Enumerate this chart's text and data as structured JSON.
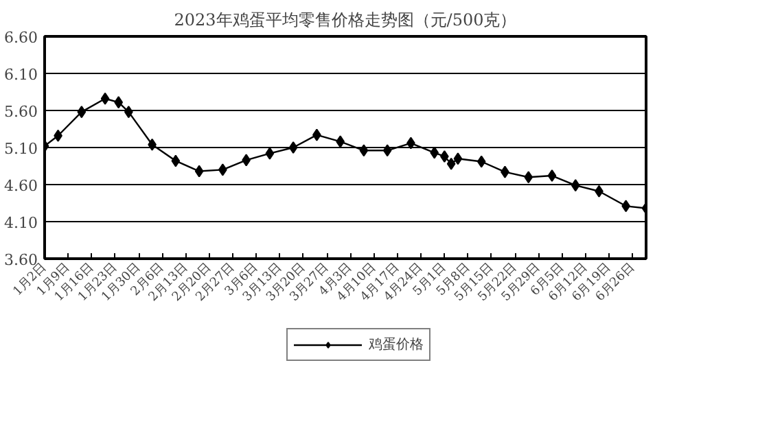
{
  "chart_data": {
    "type": "line",
    "title": "2023年鸡蛋平均零售价格走势图（元/500克）",
    "x": [
      "2023-01-02",
      "2023-01-06",
      "2023-01-13",
      "2023-01-20",
      "2023-01-24",
      "2023-01-27",
      "2023-02-03",
      "2023-02-10",
      "2023-02-17",
      "2023-02-24",
      "2023-03-03",
      "2023-03-10",
      "2023-03-17",
      "2023-03-24",
      "2023-03-31",
      "2023-04-07",
      "2023-04-14",
      "2023-04-21",
      "2023-04-28",
      "2023-05-01",
      "2023-05-03",
      "2023-05-05",
      "2023-05-12",
      "2023-05-19",
      "2023-05-26",
      "2023-06-02",
      "2023-06-09",
      "2023-06-16",
      "2023-06-24",
      "2023-06-30"
    ],
    "series": [
      {
        "name": "鸡蛋价格",
        "color": "#000000",
        "values": [
          5.12,
          5.26,
          5.58,
          5.76,
          5.71,
          5.58,
          5.14,
          4.92,
          4.78,
          4.8,
          4.93,
          5.02,
          5.1,
          5.27,
          5.18,
          5.06,
          5.06,
          5.16,
          5.03,
          4.98,
          4.88,
          4.95,
          4.91,
          4.77,
          4.7,
          4.72,
          4.59,
          4.51,
          4.31,
          4.28
        ]
      }
    ],
    "xlim": [
      "2023-01-02",
      "2023-06-30"
    ],
    "xticks": [
      {
        "value": "2023-01-02",
        "label": "1月2日"
      },
      {
        "value": "2023-01-09",
        "label": "1月9日"
      },
      {
        "value": "2023-01-16",
        "label": "1月16日"
      },
      {
        "value": "2023-01-23",
        "label": "1月23日"
      },
      {
        "value": "2023-01-30",
        "label": "1月30日"
      },
      {
        "value": "2023-02-06",
        "label": "2月6日"
      },
      {
        "value": "2023-02-13",
        "label": "2月13日"
      },
      {
        "value": "2023-02-20",
        "label": "2月20日"
      },
      {
        "value": "2023-02-27",
        "label": "2月27日"
      },
      {
        "value": "2023-03-06",
        "label": "3月6日"
      },
      {
        "value": "2023-03-13",
        "label": "3月13日"
      },
      {
        "value": "2023-03-20",
        "label": "3月20日"
      },
      {
        "value": "2023-03-27",
        "label": "3月27日"
      },
      {
        "value": "2023-04-03",
        "label": "4月3日"
      },
      {
        "value": "2023-04-10",
        "label": "4月10日"
      },
      {
        "value": "2023-04-17",
        "label": "4月17日"
      },
      {
        "value": "2023-04-24",
        "label": "4月24日"
      },
      {
        "value": "2023-05-01",
        "label": "5月1日"
      },
      {
        "value": "2023-05-08",
        "label": "5月8日"
      },
      {
        "value": "2023-05-15",
        "label": "5月15日"
      },
      {
        "value": "2023-05-22",
        "label": "5月22日"
      },
      {
        "value": "2023-05-29",
        "label": "5月29日"
      },
      {
        "value": "2023-06-05",
        "label": "6月5日"
      },
      {
        "value": "2023-06-12",
        "label": "6月12日"
      },
      {
        "value": "2023-06-19",
        "label": "6月19日"
      },
      {
        "value": "2023-06-26",
        "label": "6月26日"
      }
    ],
    "ylim": [
      3.6,
      6.6
    ],
    "yticks": [
      {
        "value": 3.6,
        "label": "3.60"
      },
      {
        "value": 4.1,
        "label": "4.10"
      },
      {
        "value": 4.6,
        "label": "4.60"
      },
      {
        "value": 5.1,
        "label": "5.10"
      },
      {
        "value": 5.6,
        "label": "5.60"
      },
      {
        "value": 6.1,
        "label": "6.10"
      },
      {
        "value": 6.6,
        "label": "6.60"
      }
    ],
    "grid": "y",
    "legend": "bottom",
    "marker": "diamond",
    "line_style": "solid"
  }
}
